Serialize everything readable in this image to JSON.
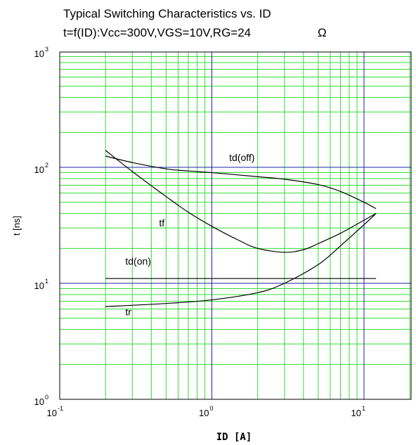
{
  "chart_data": {
    "type": "line",
    "title_line1": "Typical Switching Characteristics vs. ID",
    "title_line2": "t=f(ID):Vcc=300V,VGS=10V,RG=24",
    "title_symbol": "Ω",
    "xlabel": "ID  [A]",
    "ylabel": "t [ns]",
    "x_scale": "log",
    "y_scale": "log",
    "xlim": [
      0.1,
      20
    ],
    "ylim": [
      1,
      1000
    ],
    "x_ticks": [
      {
        "base": "10",
        "exp": "-1",
        "value": 0.1
      },
      {
        "base": "10",
        "exp": "0",
        "value": 1
      },
      {
        "base": "10",
        "exp": "1",
        "value": 10
      }
    ],
    "y_ticks": [
      {
        "base": "10",
        "exp": "0",
        "value": 1
      },
      {
        "base": "10",
        "exp": "1",
        "value": 10
      },
      {
        "base": "10",
        "exp": "2",
        "value": 100
      },
      {
        "base": "10",
        "exp": "3",
        "value": 1000
      }
    ],
    "grid": true,
    "colors": {
      "minor_grid": "#33dd33",
      "major_grid": "#2222aa",
      "curve": "#000000"
    },
    "series": [
      {
        "name": "td(off)",
        "x": [
          0.2,
          0.3,
          0.5,
          0.7,
          1,
          2,
          3,
          5,
          7,
          10,
          12
        ],
        "y": [
          125,
          110,
          97,
          93,
          90,
          83,
          79,
          71,
          62,
          50,
          44
        ]
      },
      {
        "name": "tf",
        "x": [
          0.2,
          0.3,
          0.5,
          0.7,
          1,
          1.5,
          2,
          3,
          4,
          5,
          7,
          10,
          12
        ],
        "y": [
          140,
          92,
          56,
          41,
          31,
          23.5,
          20,
          18.5,
          19.5,
          22,
          27,
          35,
          40
        ]
      },
      {
        "name": "td(on)",
        "x": [
          0.2,
          12
        ],
        "y": [
          11,
          11
        ]
      },
      {
        "name": "tr",
        "x": [
          0.2,
          0.5,
          1,
          2,
          3,
          5,
          7,
          10,
          12
        ],
        "y": [
          6.3,
          6.7,
          7.2,
          8.3,
          10,
          14.5,
          21,
          32,
          40
        ]
      }
    ],
    "labels": [
      {
        "text": "td(off)",
        "x": 1.3,
        "y": 113
      },
      {
        "text": "tf",
        "x": 0.45,
        "y": 31
      },
      {
        "text": "td(on)",
        "x": 0.27,
        "y": 14.5
      },
      {
        "text": "tr",
        "x": 0.27,
        "y": 5.3
      }
    ]
  }
}
